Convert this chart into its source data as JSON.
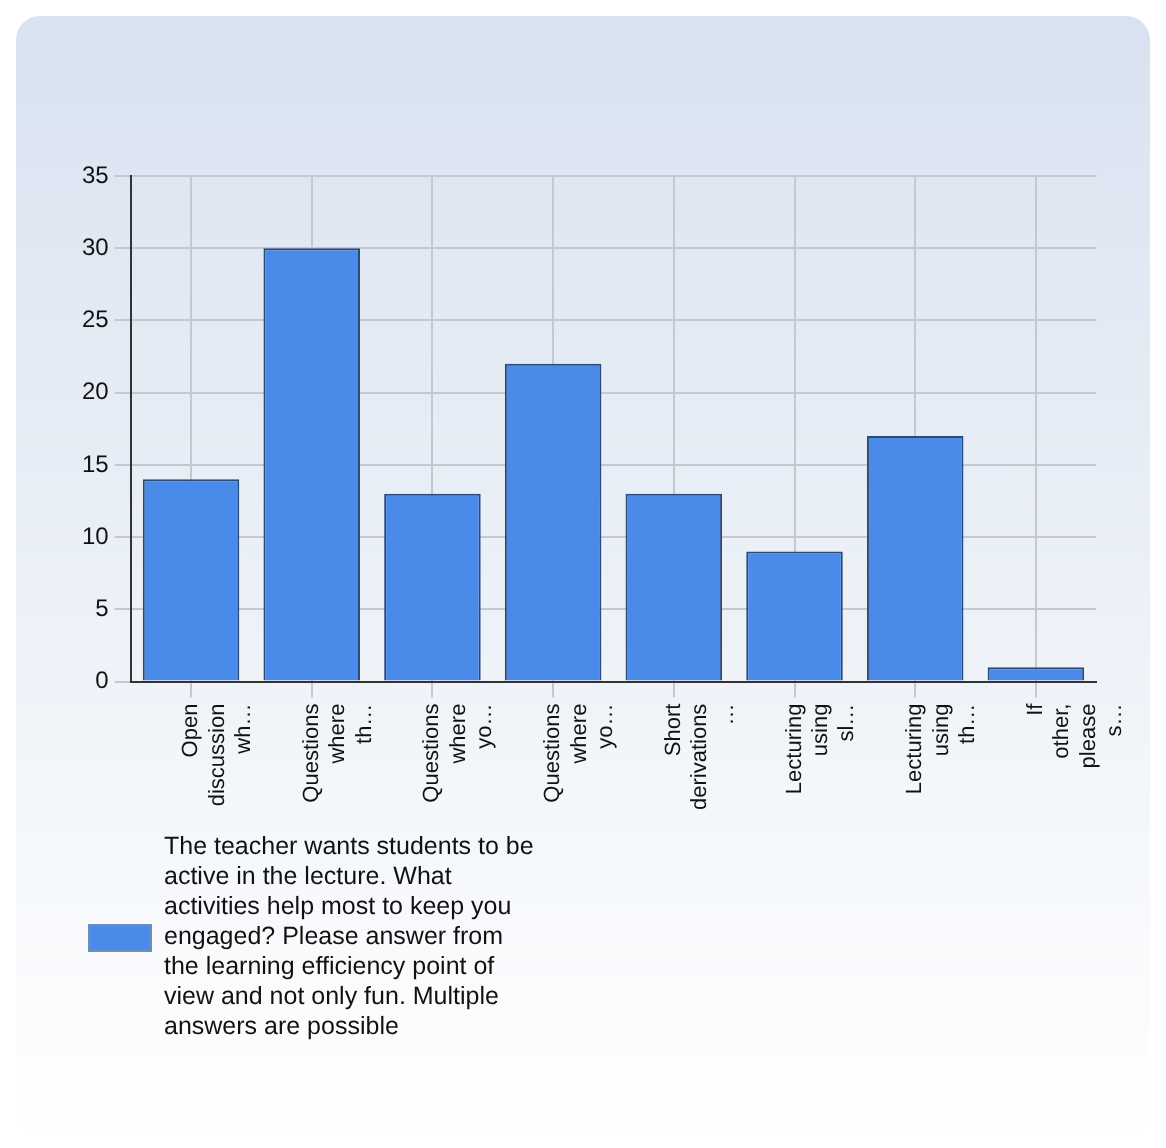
{
  "chart_data": {
    "type": "bar",
    "categories": [
      "Open discussion wh…",
      "Questions where th…",
      "Questions where yo…",
      "Questions where yo…",
      "Short derivations …",
      "Lecturing using sl…",
      "Lecturing using th…",
      "If other, please s…"
    ],
    "series": [
      {
        "name": "The teacher wants students to be active in the lecture. What activities help most to keep you engaged? Please answer from the learning efficiency point of view and not only fun. Multiple answers are possible",
        "color": "#4a8ae8",
        "values": [
          14,
          30,
          13,
          22,
          13,
          9,
          17,
          1
        ]
      }
    ],
    "ylim": [
      0,
      35
    ],
    "yticks": [
      0,
      5,
      10,
      15,
      20,
      25,
      30,
      35
    ],
    "grid": true,
    "legend": "bottom left"
  }
}
